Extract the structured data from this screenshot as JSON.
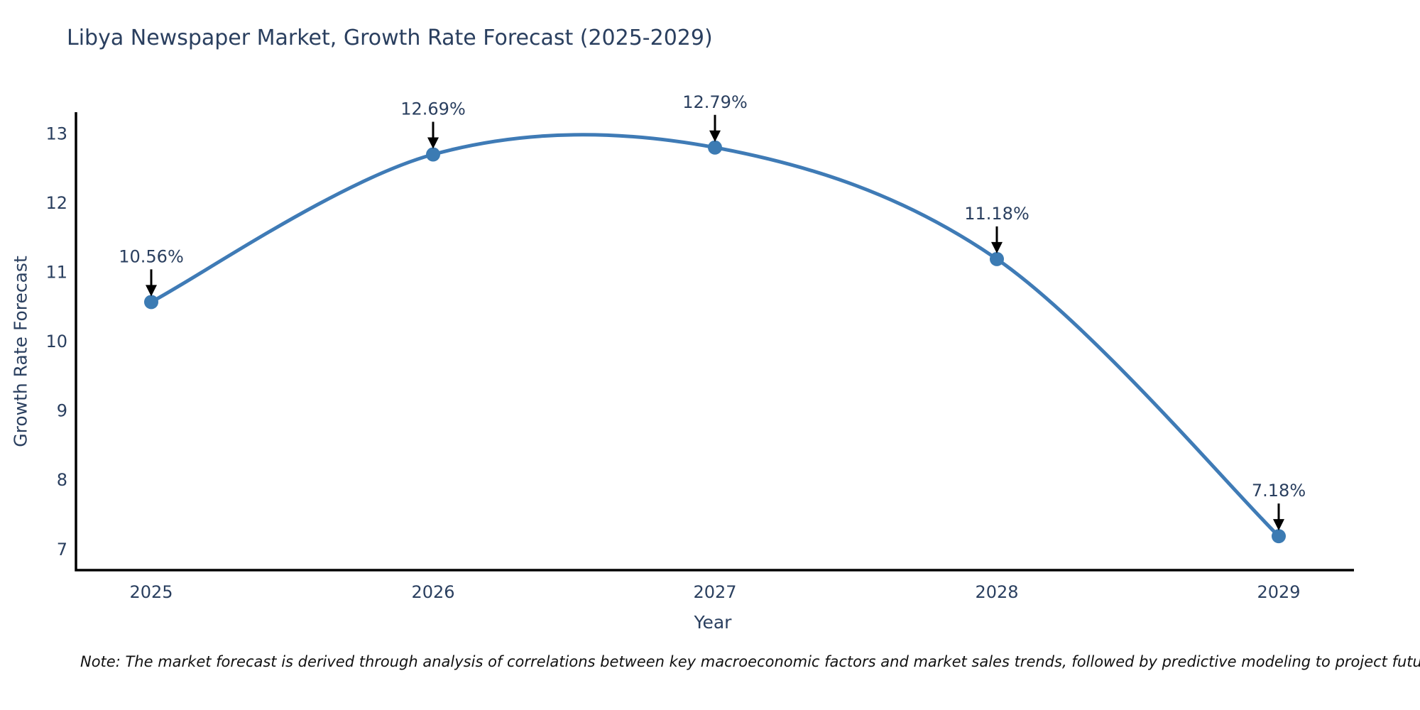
{
  "figure": {
    "note": "Note: The market forecast is derived through analysis of correlations between key macroeconomic factors and market sales trends, followed by predictive modeling to project future sales"
  },
  "chart_data": {
    "type": "line",
    "title": "Libya Newspaper Market, Growth Rate Forecast (2025-2029)",
    "xlabel": "Year",
    "ylabel": "Growth Rate Forecast",
    "x": [
      2025,
      2026,
      2027,
      2028,
      2029
    ],
    "y": [
      10.56,
      12.69,
      12.79,
      11.18,
      7.18
    ],
    "labels": [
      "10.56%",
      "12.69%",
      "12.79%",
      "11.18%",
      "7.18%"
    ],
    "yticks": [
      7,
      8,
      9,
      10,
      11,
      12,
      13
    ],
    "xlim": [
      2024.733,
      2029.267
    ],
    "ylim": [
      6.69,
      13.3
    ],
    "line_shape": "spline",
    "grid": false,
    "legend": "none",
    "colors": {
      "line": "#3f7bb6",
      "marker": "#3c7bb3",
      "axis": "#000000",
      "text": "#2a3f5f",
      "annotation_arrow": "#000000",
      "background": "#ffffff"
    }
  }
}
